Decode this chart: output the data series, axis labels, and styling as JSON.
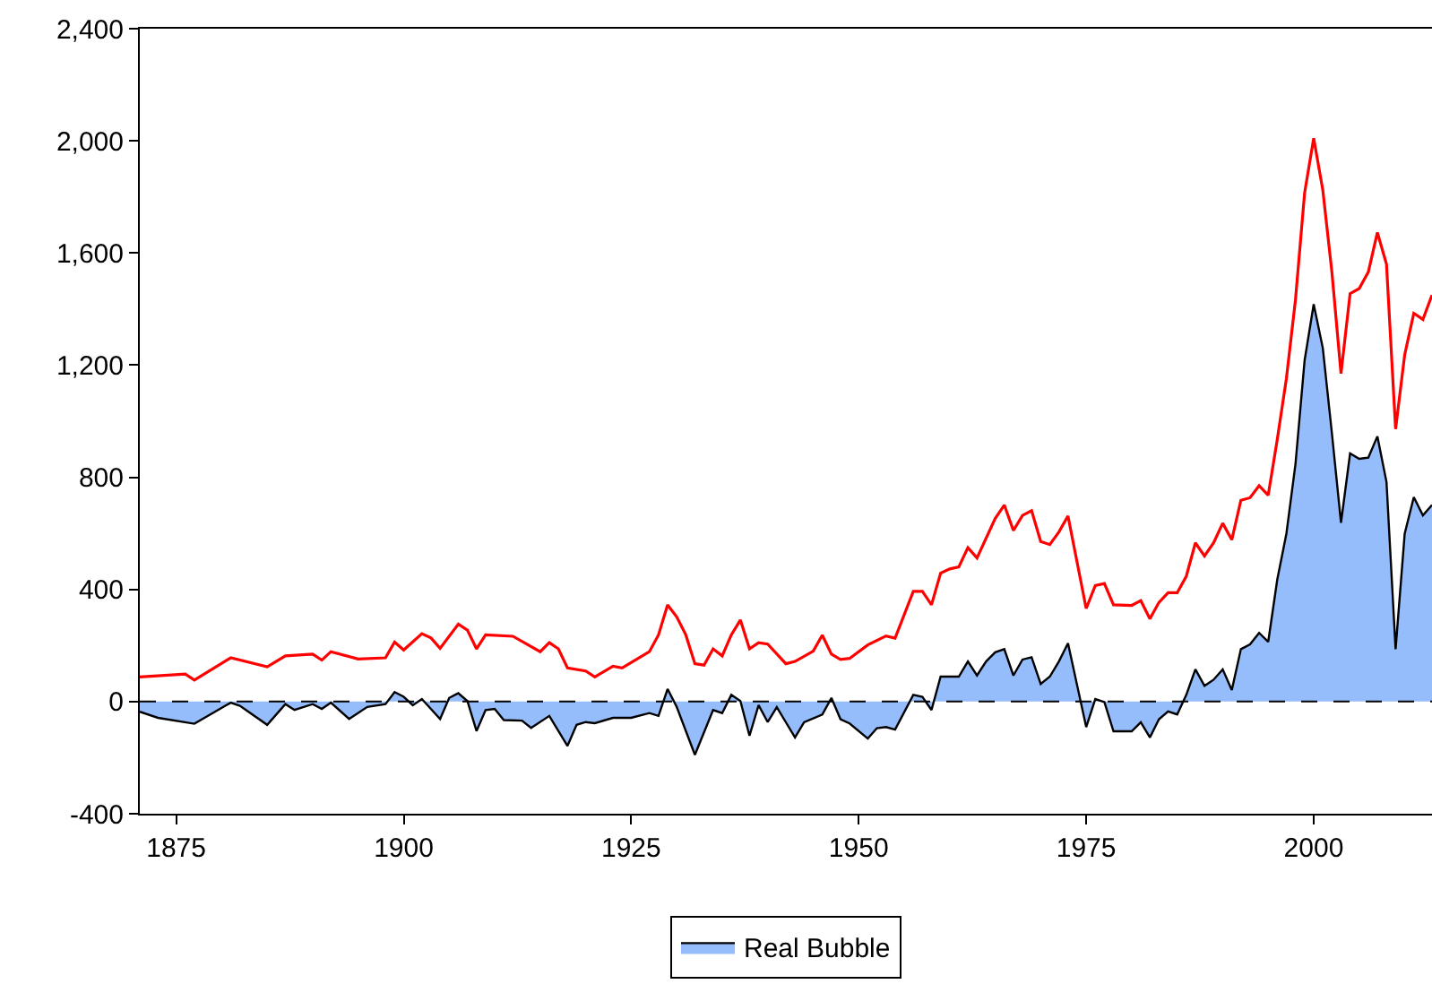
{
  "chart_data": {
    "type": "line",
    "xlim": [
      1871,
      2013
    ],
    "xticks": [
      1875,
      1900,
      1925,
      1950,
      1975,
      2000
    ],
    "ylim": [
      -400,
      2400
    ],
    "yticks": [
      {
        "value": -400,
        "label": "-400"
      },
      0,
      400,
      800,
      {
        "value": 1200,
        "label": "1,200"
      },
      {
        "value": 1600,
        "label": "1,600"
      },
      {
        "value": 2000,
        "label": "2,000"
      },
      {
        "value": 2400,
        "label": "2,400"
      }
    ],
    "series": [
      {
        "name": "Real Bubble",
        "type": "area",
        "color": "#95bdfb",
        "x": [
          1871,
          1873,
          1877,
          1879,
          1881,
          1882,
          1885,
          1887,
          1888,
          1890,
          1891,
          1892,
          1894,
          1896,
          1898,
          1899,
          1900,
          1901,
          1902,
          1904,
          1905,
          1906,
          1907,
          1908,
          1909,
          1910,
          1911,
          1913,
          1914,
          1916,
          1918,
          1919,
          1920,
          1921,
          1923,
          1925,
          1927,
          1928,
          1929,
          1930,
          1932,
          1934,
          1935,
          1936,
          1937,
          1938,
          1939,
          1940,
          1941,
          1942,
          1943,
          1944,
          1946,
          1947,
          1948,
          1949,
          1951,
          1952,
          1953,
          1954,
          1956,
          1957,
          1958,
          1959,
          1961,
          1962,
          1963,
          1964,
          1965,
          1966,
          1967,
          1968,
          1969,
          1970,
          1971,
          1972,
          1973,
          1975,
          1976,
          1977,
          1978,
          1980,
          1981,
          1982,
          1983,
          1984,
          1985,
          1986,
          1987,
          1988,
          1989,
          1990,
          1991,
          1992,
          1993,
          1994,
          1995,
          1996,
          1997,
          1998,
          1999,
          2000,
          2001,
          2002,
          2003,
          2004,
          2005,
          2006,
          2007,
          2008,
          2009,
          2010,
          2011,
          2012,
          2013
        ],
        "values": [
          -36,
          -58,
          -79,
          -41,
          -4,
          -15,
          -83,
          -9,
          -30,
          -9,
          -26,
          -4,
          -62,
          -19,
          -9,
          34,
          17,
          -13,
          9,
          -62,
          13,
          30,
          2,
          -105,
          -30,
          -26,
          -66,
          -68,
          -94,
          -51,
          -158,
          -83,
          -73,
          -77,
          -58,
          -58,
          -41,
          -51,
          45,
          -19,
          -190,
          -30,
          -41,
          24,
          2,
          -122,
          -13,
          -73,
          -20,
          -74,
          -128,
          -74,
          -46,
          13,
          -63,
          -78,
          -132,
          -95,
          -91,
          -100,
          24,
          17,
          -30,
          89,
          89,
          143,
          93,
          143,
          176,
          187,
          93,
          150,
          158,
          63,
          89,
          143,
          208,
          -91,
          9,
          -2,
          -106,
          -106,
          -74,
          -128,
          -63,
          -35,
          -46,
          24,
          115,
          56,
          78,
          115,
          41,
          187,
          204,
          245,
          213,
          436,
          599,
          848,
          1217,
          1417,
          1261,
          957,
          638,
          885,
          866,
          870,
          946,
          783,
          187,
          599,
          729,
          664,
          701
        ]
      },
      {
        "color": "#ff0000",
        "x": [
          1871,
          1876,
          1877,
          1881,
          1885,
          1887,
          1890,
          1891,
          1892,
          1895,
          1898,
          1899,
          1900,
          1902,
          1903,
          1904,
          1906,
          1907,
          1908,
          1909,
          1912,
          1915,
          1916,
          1917,
          1918,
          1920,
          1921,
          1923,
          1924,
          1927,
          1928,
          1929,
          1930,
          1931,
          1932,
          1933,
          1934,
          1935,
          1936,
          1937,
          1938,
          1939,
          1940,
          1942,
          1943,
          1945,
          1946,
          1947,
          1948,
          1949,
          1951,
          1953,
          1954,
          1956,
          1957,
          1958,
          1959,
          1960,
          1961,
          1962,
          1963,
          1965,
          1966,
          1967,
          1968,
          1969,
          1970,
          1971,
          1972,
          1973,
          1975,
          1976,
          1977,
          1978,
          1980,
          1981,
          1982,
          1983,
          1984,
          1985,
          1986,
          1987,
          1988,
          1989,
          1990,
          1991,
          1992,
          1993,
          1994,
          1995,
          1996,
          1997,
          1998,
          1999,
          2000,
          2001,
          2002,
          2003,
          2004,
          2005,
          2006,
          2007,
          2008,
          2009,
          2010,
          2011,
          2012,
          2013
        ],
        "values": [
          88,
          98,
          77,
          156,
          124,
          163,
          169,
          148,
          178,
          152,
          156,
          212,
          184,
          242,
          227,
          190,
          276,
          255,
          188,
          238,
          233,
          178,
          210,
          188,
          120,
          109,
          88,
          126,
          120,
          178,
          238,
          345,
          302,
          238,
          135,
          130,
          188,
          163,
          238,
          291,
          188,
          210,
          205,
          135,
          143,
          180,
          237,
          169,
          150,
          154,
          202,
          234,
          226,
          393,
          393,
          345,
          458,
          473,
          480,
          549,
          512,
          653,
          701,
          610,
          664,
          681,
          571,
          560,
          605,
          662,
          332,
          414,
          421,
          345,
          343,
          360,
          295,
          354,
          388,
          388,
          447,
          566,
          519,
          566,
          636,
          577,
          718,
          727,
          770,
          736,
          935,
          1152,
          1434,
          1814,
          2009,
          1825,
          1532,
          1170,
          1455,
          1473,
          1532,
          1673,
          1560,
          972,
          1237,
          1385,
          1363,
          1450
        ]
      }
    ],
    "ref_lines": [
      {
        "axis": "y",
        "value": 0,
        "color": "#000000",
        "line_style": "dashed"
      }
    ],
    "legend": "bottom"
  }
}
